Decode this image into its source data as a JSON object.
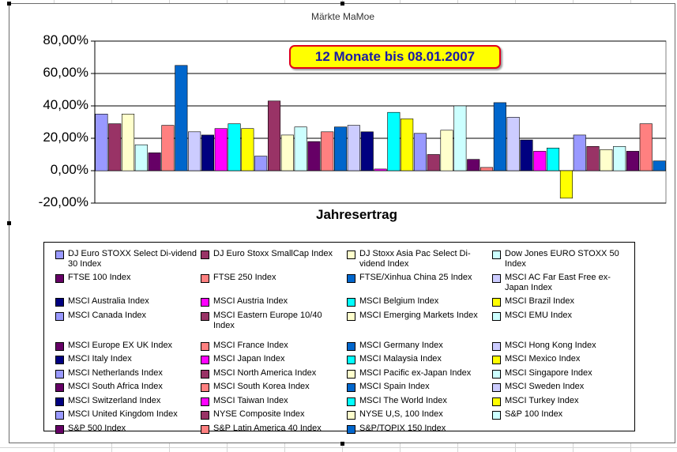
{
  "chart_data": {
    "type": "bar",
    "title": "Märkte MaMoe",
    "xlabel": "Jahresertrag",
    "ylabel": "",
    "ylim": [
      -20,
      80
    ],
    "yticks": [
      "80,00%",
      "60,00%",
      "40,00%",
      "20,00%",
      "0,00%",
      "-20,00%"
    ],
    "annotation": "12 Monate bis 08.01.2007",
    "grid": true,
    "legend_position": "bottom",
    "series": [
      {
        "name": "DJ Euro STOXX Select Di-vidend 30 Index",
        "value": 35,
        "color": "#9999ff"
      },
      {
        "name": "DJ Euro Stoxx SmallCap Index",
        "value": 29,
        "color": "#993366"
      },
      {
        "name": "DJ Stoxx Asia Pac Select Di-vidend Index",
        "value": 35,
        "color": "#ffffcc"
      },
      {
        "name": "Dow Jones EURO STOXX 50 Index",
        "value": 16,
        "color": "#ccffff"
      },
      {
        "name": "FTSE 100 Index",
        "value": 11,
        "color": "#660066"
      },
      {
        "name": "FTSE 250 Index",
        "value": 28,
        "color": "#ff8080"
      },
      {
        "name": "FTSE/Xinhua China 25 Index",
        "value": 65,
        "color": "#0066cc"
      },
      {
        "name": "MSCI AC Far East Free ex-Japan Index",
        "value": 24,
        "color": "#ccccff"
      },
      {
        "name": "MSCI Australia Index",
        "value": 22,
        "color": "#000080"
      },
      {
        "name": "MSCI Austria Index",
        "value": 26,
        "color": "#ff00ff"
      },
      {
        "name": "MSCI Belgium Index",
        "value": 29,
        "color": "#00ffff"
      },
      {
        "name": "MSCI Brazil Index",
        "value": 26,
        "color": "#ffff00"
      },
      {
        "name": "MSCI Canada Index",
        "value": 9,
        "color": "#9999ff"
      },
      {
        "name": "MSCI Eastern Europe 10/40 Index",
        "value": 43,
        "color": "#993366"
      },
      {
        "name": "MSCI Emerging Markets Index",
        "value": 22,
        "color": "#ffffcc"
      },
      {
        "name": "MSCI EMU Index",
        "value": 27,
        "color": "#ccffff"
      },
      {
        "name": "MSCI Europe EX UK Index",
        "value": 18,
        "color": "#660066"
      },
      {
        "name": "MSCI France Index",
        "value": 24,
        "color": "#ff8080"
      },
      {
        "name": "MSCI Germany Index",
        "value": 27,
        "color": "#0066cc"
      },
      {
        "name": "MSCI Hong Kong Index",
        "value": 28,
        "color": "#ccccff"
      },
      {
        "name": "MSCI Italy Index",
        "value": 24,
        "color": "#000080"
      },
      {
        "name": "MSCI Japan Index",
        "value": 1,
        "color": "#ff00ff"
      },
      {
        "name": "MSCI Malaysia Index",
        "value": 36,
        "color": "#00ffff"
      },
      {
        "name": "MSCI Mexico Index",
        "value": 32,
        "color": "#ffff00"
      },
      {
        "name": "MSCI Netherlands Index",
        "value": 23,
        "color": "#9999ff"
      },
      {
        "name": "MSCI North America Index",
        "value": 10,
        "color": "#993366"
      },
      {
        "name": "MSCI Pacific ex-Japan Index",
        "value": 25,
        "color": "#ffffcc"
      },
      {
        "name": "MSCI Singapore Index",
        "value": 40,
        "color": "#ccffff"
      },
      {
        "name": "MSCI South Africa Index",
        "value": 7,
        "color": "#660066"
      },
      {
        "name": "MSCI South Korea Index",
        "value": 2,
        "color": "#ff8080"
      },
      {
        "name": "MSCI Spain Index",
        "value": 42,
        "color": "#0066cc"
      },
      {
        "name": "MSCI Sweden Index",
        "value": 33,
        "color": "#ccccff"
      },
      {
        "name": "MSCI Switzerland Index",
        "value": 19,
        "color": "#000080"
      },
      {
        "name": "MSCI Taiwan Index",
        "value": 12,
        "color": "#ff00ff"
      },
      {
        "name": "MSCI The World Index",
        "value": 14,
        "color": "#00ffff"
      },
      {
        "name": "MSCI Turkey Index",
        "value": -17,
        "color": "#ffff00"
      },
      {
        "name": "MSCI United Kingdom Index",
        "value": 22,
        "color": "#9999ff"
      },
      {
        "name": "NYSE Composite Index",
        "value": 15,
        "color": "#993366"
      },
      {
        "name": "NYSE U,S, 100 Index",
        "value": 13,
        "color": "#ffffcc"
      },
      {
        "name": "S&P 100 Index",
        "value": 15,
        "color": "#ccffff"
      },
      {
        "name": "S&P 500 Index",
        "value": 12,
        "color": "#660066"
      },
      {
        "name": "S&P Latin America 40 Index",
        "value": 29,
        "color": "#ff8080"
      },
      {
        "name": "S&P/TOPIX 150 Index",
        "value": 6,
        "color": "#0066cc"
      }
    ]
  }
}
